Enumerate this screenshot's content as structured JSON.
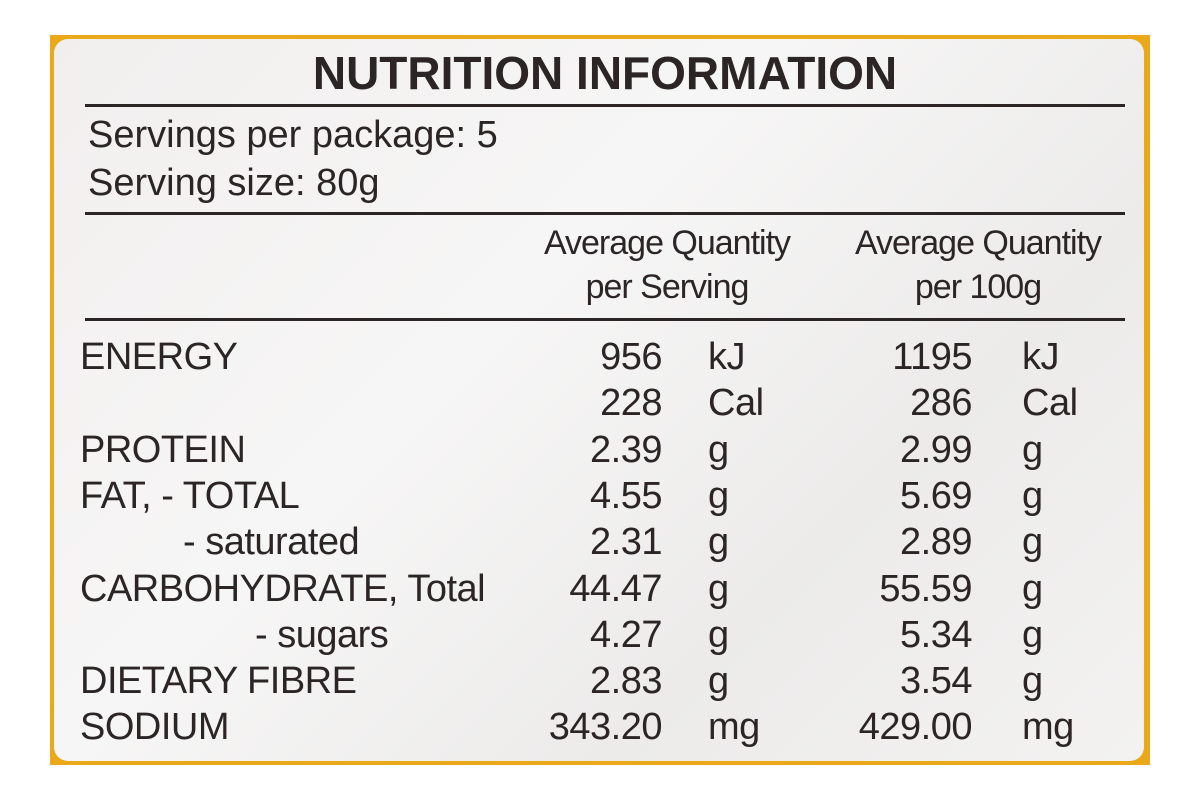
{
  "header": {
    "title": "NUTRITION INFORMATION",
    "servings_per_package": "Servings per package: 5",
    "serving_size": "Serving size: 80g"
  },
  "table": {
    "columns": [
      [
        "Average Quantity",
        "per Serving"
      ],
      [
        "Average Quantity",
        "per 100g"
      ]
    ],
    "rows": [
      {
        "label": "ENERGY",
        "serving": "956",
        "serving_unit": "kJ",
        "per_100g": "1195",
        "per_100g_unit": "kJ"
      },
      {
        "serving": "228",
        "serving_unit": "Cal",
        "per_100g": "286",
        "per_100g_unit": "Cal"
      },
      {
        "label": "PROTEIN",
        "serving": "2.39",
        "serving_unit": "g",
        "per_100g": "2.99",
        "per_100g_unit": "g"
      },
      {
        "label": "FAT, - TOTAL",
        "serving": "4.55",
        "serving_unit": "g",
        "per_100g": "5.69",
        "per_100g_unit": "g"
      },
      {
        "label": "- saturated",
        "serving": "2.31",
        "serving_unit": "g",
        "per_100g": "2.89",
        "per_100g_unit": "g"
      },
      {
        "label": "CARBOHYDRATE, Total",
        "serving": "44.47",
        "serving_unit": "g",
        "per_100g": "55.59",
        "per_100g_unit": "g"
      },
      {
        "label": "- sugars",
        "serving": "4.27",
        "serving_unit": "g",
        "per_100g": "5.34",
        "per_100g_unit": "g"
      },
      {
        "label": "DIETARY FIBRE",
        "serving": "2.83",
        "serving_unit": "g",
        "per_100g": "3.54",
        "per_100g_unit": "g"
      },
      {
        "label": "SODIUM",
        "serving": "343.20",
        "serving_unit": "mg",
        "per_100g": "429.00",
        "per_100g_unit": "mg"
      }
    ]
  }
}
